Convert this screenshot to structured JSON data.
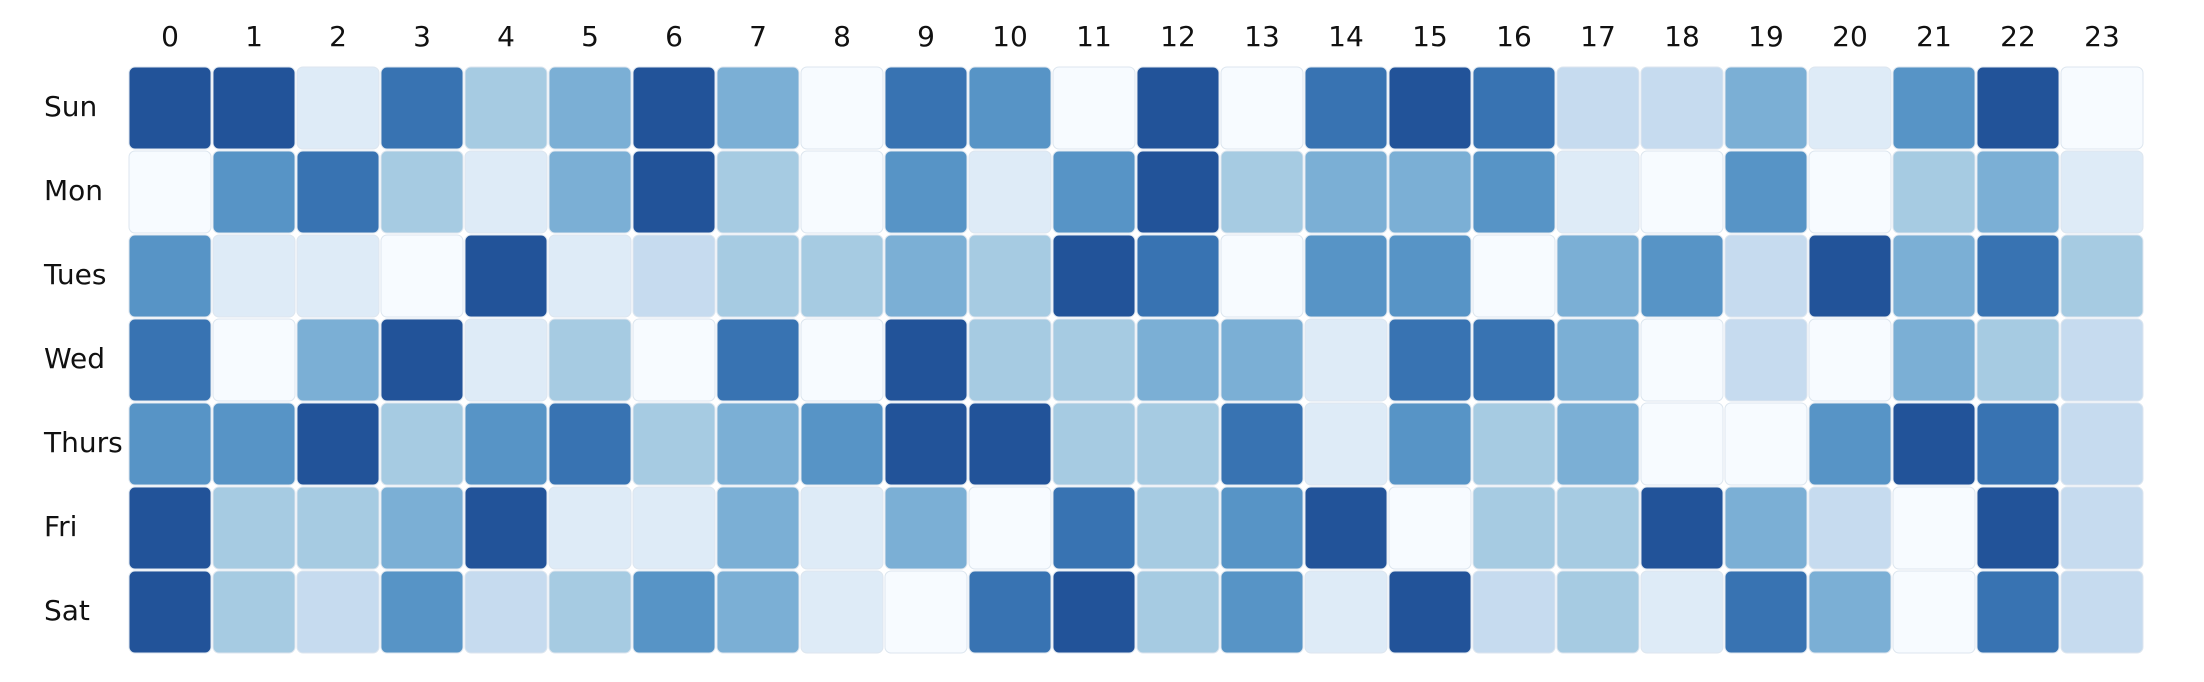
{
  "chart_data": {
    "type": "heatmap",
    "title": "",
    "xlabel": "",
    "ylabel": "",
    "x_categories": [
      "0",
      "1",
      "2",
      "3",
      "4",
      "5",
      "6",
      "7",
      "8",
      "9",
      "10",
      "11",
      "12",
      "13",
      "14",
      "15",
      "16",
      "17",
      "18",
      "19",
      "20",
      "21",
      "22",
      "23"
    ],
    "y_categories": [
      "Sun",
      "Mon",
      "Tues",
      "Wed",
      "Thurs",
      "Fri",
      "Sat"
    ],
    "color_scale": "Blues",
    "value_range": [
      0,
      8
    ],
    "values": [
      [
        8,
        8,
        1,
        6,
        3,
        4,
        8,
        4,
        0,
        6,
        5,
        0,
        8,
        0,
        6,
        8,
        6,
        2,
        2,
        4,
        1,
        5,
        8,
        0
      ],
      [
        0,
        5,
        6,
        3,
        1,
        4,
        8,
        3,
        0,
        5,
        1,
        5,
        8,
        3,
        4,
        4,
        5,
        1,
        0,
        5,
        0,
        3,
        4,
        1
      ],
      [
        5,
        1,
        1,
        0,
        8,
        1,
        2,
        3,
        3,
        4,
        3,
        8,
        6,
        0,
        5,
        5,
        0,
        4,
        5,
        2,
        8,
        4,
        6,
        3
      ],
      [
        6,
        0,
        4,
        8,
        1,
        3,
        0,
        6,
        0,
        8,
        3,
        3,
        4,
        4,
        1,
        6,
        6,
        4,
        0,
        2,
        0,
        4,
        3,
        2
      ],
      [
        5,
        5,
        8,
        3,
        5,
        6,
        3,
        4,
        5,
        8,
        8,
        3,
        3,
        6,
        1,
        5,
        3,
        4,
        0,
        0,
        5,
        8,
        6,
        2
      ],
      [
        8,
        3,
        3,
        4,
        8,
        1,
        1,
        4,
        1,
        4,
        0,
        6,
        3,
        5,
        8,
        0,
        3,
        3,
        8,
        4,
        2,
        0,
        8,
        2
      ],
      [
        8,
        3,
        2,
        5,
        2,
        3,
        5,
        4,
        1,
        0,
        6,
        8,
        3,
        5,
        1,
        8,
        2,
        3,
        1,
        6,
        4,
        0,
        6,
        2
      ]
    ]
  }
}
